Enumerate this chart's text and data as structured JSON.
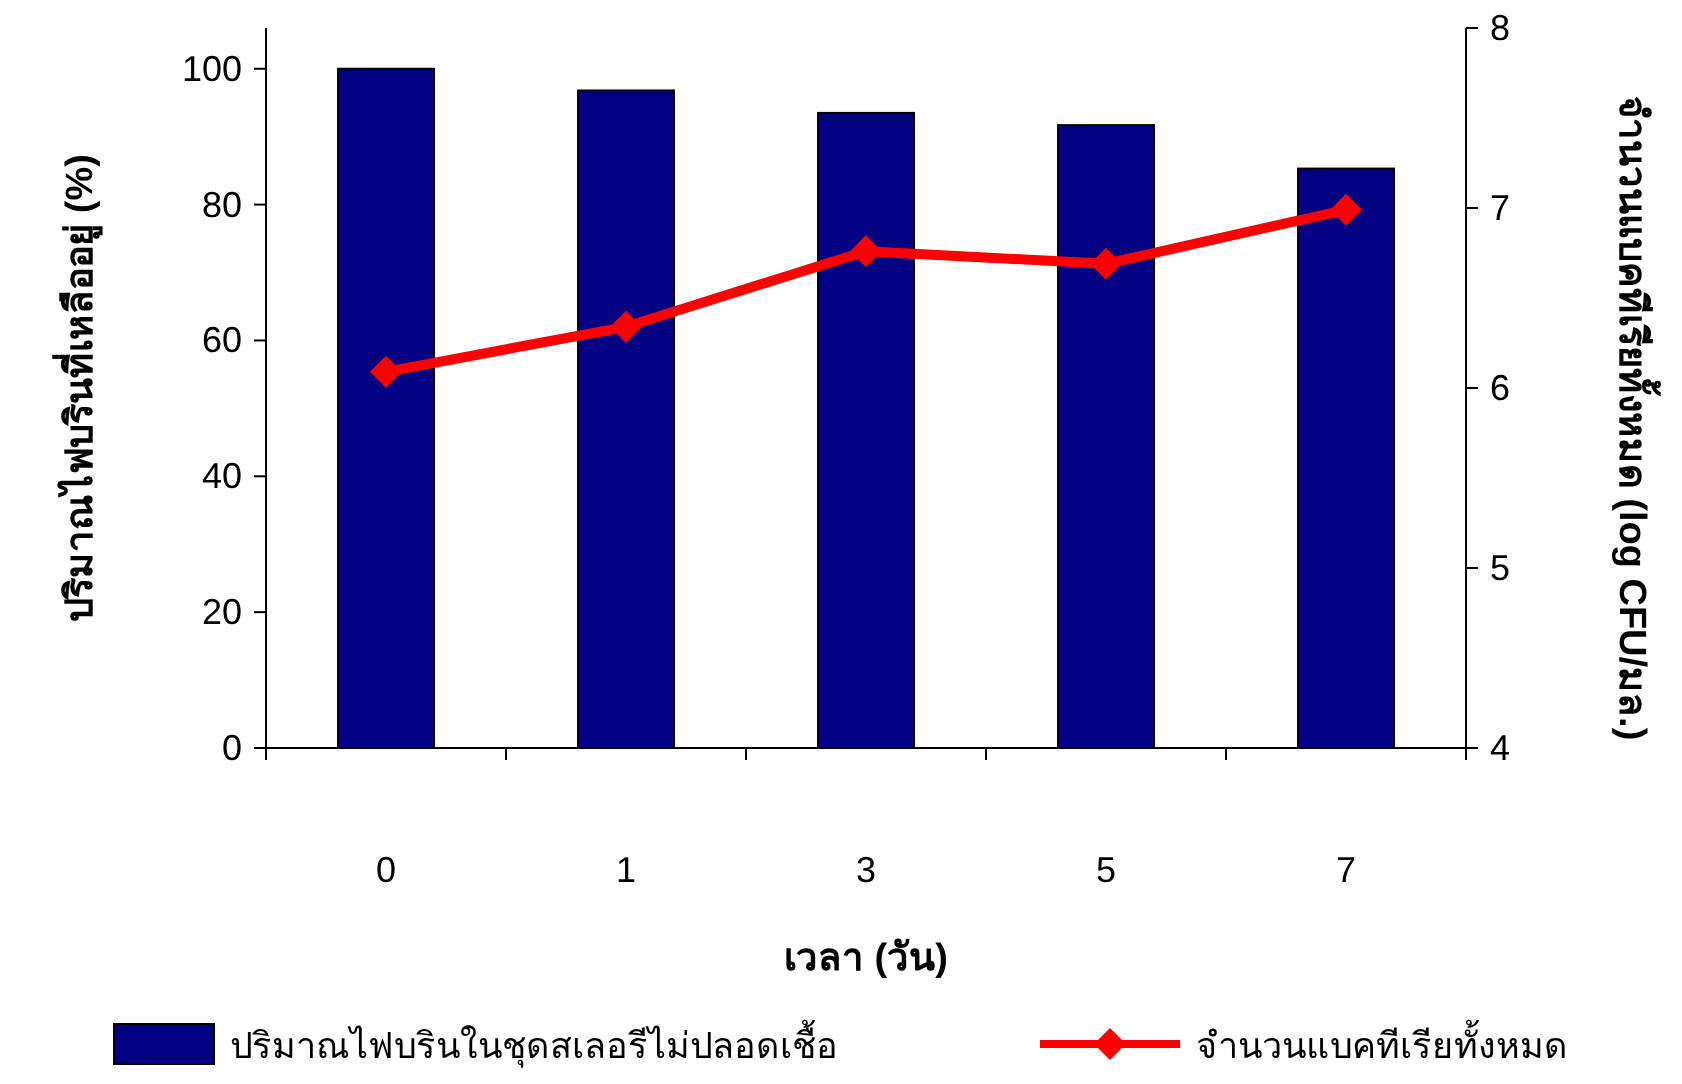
{
  "chart_data": {
    "type": "bar",
    "xlabel": "เวลา (วัน)",
    "ylabel": "ปริมาณไฟบรินที่เหลืออยู่ (%)",
    "y2label": "จำนวนแบคทีเรียทั้งหมด (log CFU/มล.)",
    "categories": [
      "0",
      "1",
      "3",
      "5",
      "7"
    ],
    "series": [
      {
        "name": "ปริมาณไฟบรินในชุดสเลอรีไม่ปลอดเชื้อ",
        "color": "#000080",
        "values": [
          100,
          96.8,
          93.5,
          91.7,
          85.3
        ]
      },
      {
        "name": "จำนวนแบคทีเรียทั้งหมด",
        "type": "line",
        "axis": "y2",
        "color": "#ff0000",
        "marker": "diamond",
        "values": [
          6.09,
          6.34,
          6.76,
          6.69,
          6.99
        ]
      }
    ],
    "ylim": [
      0,
      106
    ],
    "yticks": [
      0,
      20,
      40,
      60,
      80,
      100
    ],
    "y2lim": [
      4,
      8
    ],
    "y2ticks": [
      4,
      5,
      6,
      7,
      8
    ],
    "grid": false,
    "legend": "bottom"
  }
}
